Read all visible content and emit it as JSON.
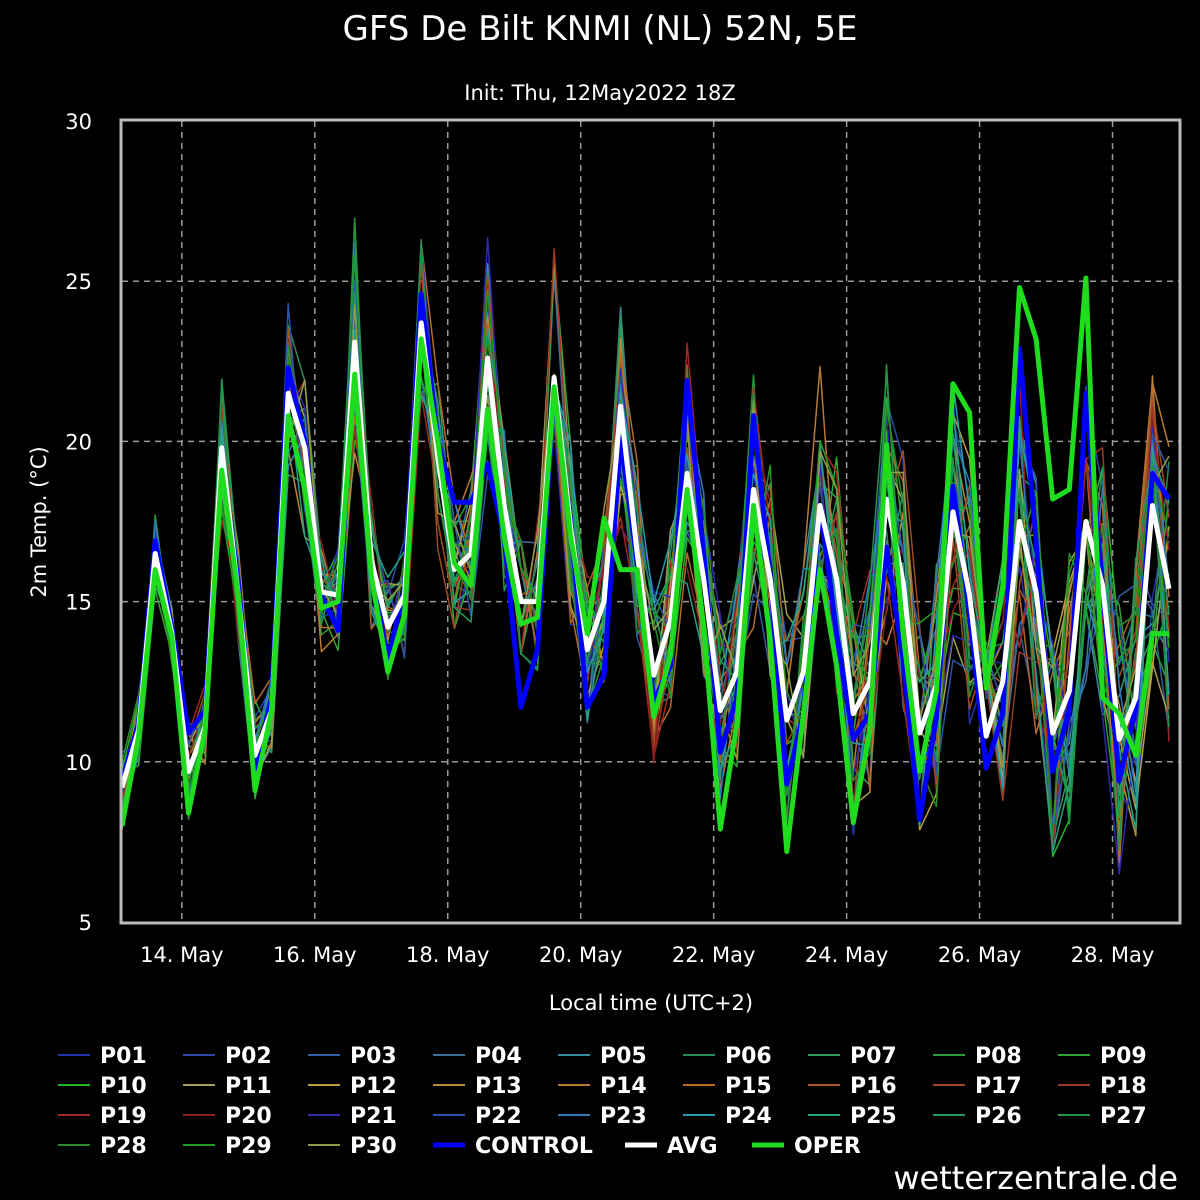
{
  "chart_data": {
    "type": "line",
    "title": "GFS De Bilt KNMI (NL) 52N, 5E",
    "subtitle": "Init: Thu, 12May2022 18Z",
    "xlabel": "Local time (UTC+2)",
    "ylabel": "2m Temp. (°C)",
    "ylim": [
      5,
      30
    ],
    "yticks": [
      5,
      10,
      15,
      20,
      25,
      30
    ],
    "xlim": [
      13.1,
      29.0
    ],
    "xticks": [
      {
        "value": 14,
        "label": "14. May"
      },
      {
        "value": 16,
        "label": "16. May"
      },
      {
        "value": 18,
        "label": "18. May"
      },
      {
        "value": 20,
        "label": "20. May"
      },
      {
        "value": 22,
        "label": "22. May"
      },
      {
        "value": 24,
        "label": "24. May"
      },
      {
        "value": 26,
        "label": "26. May"
      },
      {
        "value": 28,
        "label": "28. May"
      }
    ],
    "grid": true,
    "legend_position": "bottom",
    "x": [
      13.1,
      13.35,
      13.6,
      13.85,
      14.1,
      14.35,
      14.6,
      14.85,
      15.1,
      15.35,
      15.6,
      15.85,
      16.1,
      16.35,
      16.6,
      16.85,
      17.1,
      17.35,
      17.6,
      17.85,
      18.1,
      18.35,
      18.6,
      18.85,
      19.1,
      19.35,
      19.6,
      19.85,
      20.1,
      20.35,
      20.6,
      20.85,
      21.1,
      21.35,
      21.6,
      21.85,
      22.1,
      22.35,
      22.6,
      22.85,
      23.1,
      23.35,
      23.6,
      23.85,
      24.1,
      24.35,
      24.6,
      24.85,
      25.1,
      25.35,
      25.6,
      25.85,
      26.1,
      26.35,
      26.6,
      26.85,
      27.1,
      27.35,
      27.6,
      27.85,
      28.1,
      28.35,
      28.6,
      28.85
    ],
    "series": [
      {
        "name": "P01",
        "color": "#2233aa",
        "width": 1.5
      },
      {
        "name": "P02",
        "color": "#2a4aa8",
        "width": 1.5
      },
      {
        "name": "P03",
        "color": "#2f5fa5",
        "width": 1.5
      },
      {
        "name": "P04",
        "color": "#3a7099",
        "width": 1.5
      },
      {
        "name": "P05",
        "color": "#3a8aa0",
        "width": 1.5
      },
      {
        "name": "P06",
        "color": "#2e8a55",
        "width": 1.5
      },
      {
        "name": "P07",
        "color": "#2f9a5a",
        "width": 1.5
      },
      {
        "name": "P08",
        "color": "#2a9a3c",
        "width": 1.5
      },
      {
        "name": "P09",
        "color": "#30a535",
        "width": 1.5
      },
      {
        "name": "P10",
        "color": "#22b52a",
        "width": 1.5
      },
      {
        "name": "P11",
        "color": "#a6a052",
        "width": 1.5
      },
      {
        "name": "P12",
        "color": "#b8a040",
        "width": 1.5
      },
      {
        "name": "P13",
        "color": "#b48a3a",
        "width": 1.5
      },
      {
        "name": "P14",
        "color": "#b87a32",
        "width": 1.5
      },
      {
        "name": "P15",
        "color": "#b46a2a",
        "width": 1.5
      },
      {
        "name": "P16",
        "color": "#a85c28",
        "width": 1.5
      },
      {
        "name": "P17",
        "color": "#a04a22",
        "width": 1.5
      },
      {
        "name": "P18",
        "color": "#9a3a1e",
        "width": 1.5
      },
      {
        "name": "P19",
        "color": "#a02a22",
        "width": 1.5
      },
      {
        "name": "P20",
        "color": "#8a1e1e",
        "width": 1.5
      },
      {
        "name": "P21",
        "color": "#2e2ab0",
        "width": 1.5
      },
      {
        "name": "P22",
        "color": "#2a55a8",
        "width": 1.5
      },
      {
        "name": "P23",
        "color": "#2f7ab5",
        "width": 1.5
      },
      {
        "name": "P24",
        "color": "#2a9aa8",
        "width": 1.5
      },
      {
        "name": "P25",
        "color": "#25a080",
        "width": 1.5
      },
      {
        "name": "P26",
        "color": "#229a60",
        "width": 1.5
      },
      {
        "name": "P27",
        "color": "#1f9545",
        "width": 1.5
      },
      {
        "name": "P28",
        "color": "#2a8a2a",
        "width": 1.5
      },
      {
        "name": "P29",
        "color": "#229a22",
        "width": 1.5
      },
      {
        "name": "P30",
        "color": "#909a48",
        "width": 1.5
      },
      {
        "name": "CONTROL",
        "color": "#0000ff",
        "width": 5,
        "values": [
          9.4,
          11.2,
          16.9,
          14.2,
          10.9,
          11.6,
          19.5,
          15.6,
          9.8,
          12.0,
          22.3,
          20.0,
          15.2,
          14.1,
          23.0,
          16.0,
          13.2,
          15.4,
          24.6,
          20.0,
          18.1,
          18.1,
          19.3,
          17.0,
          11.7,
          13.5,
          21.7,
          17.5,
          11.7,
          12.7,
          20.1,
          16.2,
          11.9,
          13.0,
          21.9,
          16.5,
          10.3,
          12.0,
          20.8,
          15.8,
          9.3,
          11.5,
          18.0,
          14.0,
          10.7,
          11.5,
          16.7,
          13.2,
          8.2,
          11.4,
          18.6,
          14.6,
          9.8,
          11.5,
          22.9,
          16.9,
          9.7,
          11.6,
          21.5,
          15.4,
          9.4,
          11.7,
          19.0,
          18.2
        ]
      },
      {
        "name": "AVG",
        "color": "#ffffff",
        "width": 5,
        "values": [
          9.2,
          11.0,
          16.5,
          14.0,
          9.7,
          11.1,
          19.8,
          15.2,
          10.2,
          11.6,
          21.5,
          19.8,
          15.3,
          15.2,
          23.1,
          16.3,
          14.2,
          15.2,
          23.7,
          19.5,
          16.0,
          16.5,
          22.6,
          18.0,
          15.0,
          15.0,
          22.0,
          17.3,
          13.5,
          15.0,
          21.1,
          16.5,
          12.7,
          14.4,
          19.0,
          15.7,
          11.6,
          12.8,
          18.5,
          15.7,
          11.3,
          12.8,
          18.0,
          15.7,
          11.5,
          12.5,
          18.2,
          15.6,
          10.9,
          12.4,
          17.8,
          15.2,
          10.8,
          12.5,
          17.5,
          15.3,
          10.9,
          12.2,
          17.5,
          15.5,
          10.7,
          12.0,
          18.0,
          15.4
        ]
      },
      {
        "name": "OPER",
        "color": "#1fdc1f",
        "width": 5,
        "values": [
          8.0,
          10.8,
          16.0,
          13.9,
          8.4,
          11.0,
          19.1,
          15.2,
          9.1,
          11.6,
          20.8,
          18.5,
          14.8,
          15.0,
          22.1,
          15.8,
          12.8,
          14.6,
          23.2,
          20.0,
          16.2,
          15.5,
          21.0,
          17.0,
          14.3,
          14.5,
          21.7,
          17.0,
          14.0,
          17.6,
          16.0,
          16.0,
          11.4,
          13.3,
          18.5,
          14.2,
          7.9,
          11.2,
          18.0,
          13.8,
          7.2,
          11.5,
          16.0,
          13.0,
          8.1,
          11.0,
          19.9,
          14.0,
          9.7,
          12.2,
          21.8,
          20.9,
          12.3,
          15.5,
          24.8,
          23.2,
          18.2,
          18.5,
          25.1,
          12.0,
          11.5,
          10.2,
          14.0,
          14.0
        ]
      }
    ]
  },
  "credit": "wetterzentrale.de"
}
